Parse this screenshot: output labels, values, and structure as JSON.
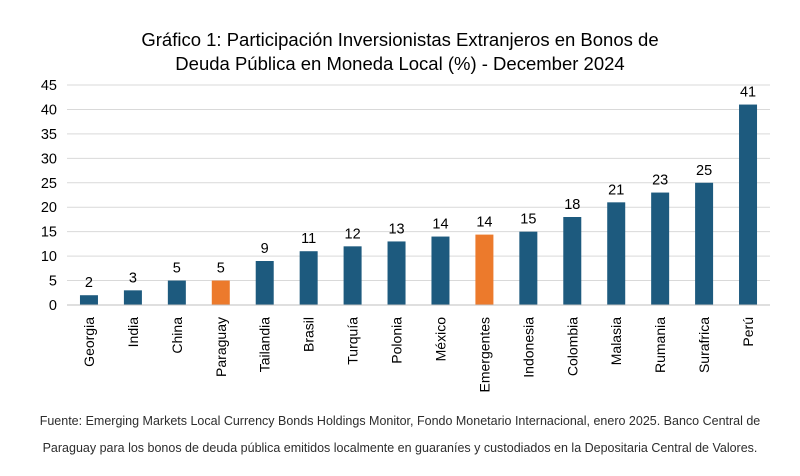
{
  "chart_data": {
    "type": "bar",
    "title_line1": "Gráfico 1: Participación Inversionistas Extranjeros en Bonos de",
    "title_line2": "Deuda Pública en Moneda Local (%) - December 2024",
    "categories": [
      "Georgia",
      "India",
      "China",
      "Paraguay",
      "Tailandia",
      "Brasil",
      "Turquía",
      "Polonia",
      "México",
      "Emergentes",
      "Indonesia",
      "Colombia",
      "Malasia",
      "Rumania",
      "Surafrica",
      "Perú"
    ],
    "values": [
      2,
      3,
      5,
      5,
      9,
      11,
      12,
      13,
      14,
      14.4,
      15,
      18,
      21,
      23,
      25,
      41
    ],
    "data_labels": [
      "2",
      "3",
      "5",
      "5",
      "9",
      "11",
      "12",
      "13",
      "14",
      "14",
      "15",
      "18",
      "21",
      "23",
      "25",
      "41"
    ],
    "highlight": [
      "Paraguay",
      "Emergentes"
    ],
    "ylim": [
      0,
      45
    ],
    "yticks": [
      "0",
      "5",
      "10",
      "15",
      "20",
      "25",
      "30",
      "35",
      "40",
      "45"
    ],
    "grid": true,
    "xlabel": "",
    "ylabel": "",
    "colors": {
      "bar": "#1d5a7e",
      "highlight": "#ec7a2c",
      "grid": "#d9d9d9"
    }
  },
  "footer": {
    "source_line1": "Fuente: Emerging Markets Local Currency Bonds Holdings Monitor, Fondo Monetario Internacional, enero 2025. Banco Central de",
    "source_line2": "Paraguay para los bonos de deuda pública emitidos localmente en guaraníes y custodiados en la Depositaria Central de Valores."
  }
}
